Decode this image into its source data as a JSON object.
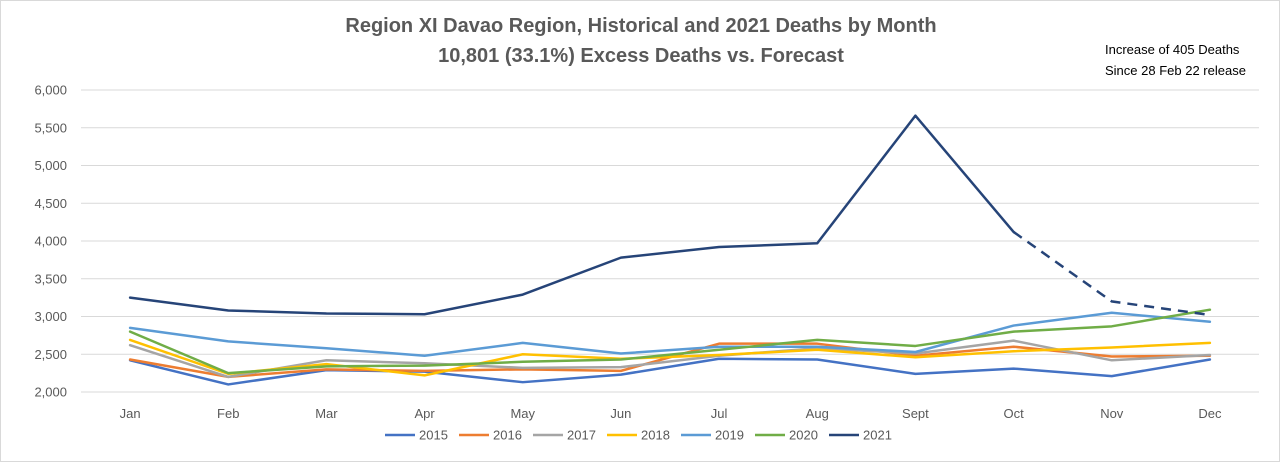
{
  "chart_data": {
    "type": "line",
    "title": "Region XI Davao Region, Historical and 2021 Deaths by Month",
    "subtitle": "10,801 (33.1%) Excess Deaths vs. Forecast",
    "annotation": [
      "Increase of 405 Deaths",
      "Since 28 Feb 22 release"
    ],
    "categories": [
      "Jan",
      "Feb",
      "Mar",
      "Apr",
      "May",
      "Jun",
      "Jul",
      "Aug",
      "Sept",
      "Oct",
      "Nov",
      "Dec"
    ],
    "ylim": [
      2000,
      6000
    ],
    "yticks": [
      2000,
      2500,
      3000,
      3500,
      4000,
      4500,
      5000,
      5500,
      6000
    ],
    "ytick_labels": [
      "2,000",
      "2,500",
      "3,000",
      "3,500",
      "4,000",
      "4,500",
      "5,000",
      "5,500",
      "6,000"
    ],
    "grid": "horizontal",
    "legend_position": "bottom",
    "series": [
      {
        "name": "2015",
        "color": "#4472c4",
        "values": [
          2420,
          2100,
          2290,
          2270,
          2130,
          2230,
          2440,
          2430,
          2240,
          2310,
          2210,
          2430
        ]
      },
      {
        "name": "2016",
        "color": "#ed7d31",
        "values": [
          2430,
          2200,
          2300,
          2280,
          2300,
          2280,
          2640,
          2640,
          2480,
          2600,
          2470,
          2480
        ]
      },
      {
        "name": "2017",
        "color": "#a5a5a5",
        "values": [
          2620,
          2200,
          2420,
          2380,
          2320,
          2330,
          2480,
          2580,
          2510,
          2680,
          2420,
          2490
        ]
      },
      {
        "name": "2018",
        "color": "#ffc000",
        "values": [
          2690,
          2240,
          2370,
          2220,
          2500,
          2440,
          2490,
          2560,
          2460,
          2540,
          2590,
          2650
        ]
      },
      {
        "name": "2019",
        "color": "#5b9bd5",
        "values": [
          2850,
          2670,
          2580,
          2480,
          2650,
          2510,
          2600,
          2600,
          2530,
          2880,
          3050,
          2930
        ]
      },
      {
        "name": "2020",
        "color": "#70ad47",
        "values": [
          2800,
          2250,
          2340,
          2350,
          2400,
          2430,
          2560,
          2690,
          2610,
          2800,
          2870,
          3090
        ]
      },
      {
        "name": "2021",
        "color": "#264478",
        "values": [
          3250,
          3080,
          3040,
          3030,
          3290,
          3780,
          3920,
          3970,
          5660,
          4120,
          3200,
          3020
        ],
        "dashed_from_index": 9
      }
    ]
  }
}
